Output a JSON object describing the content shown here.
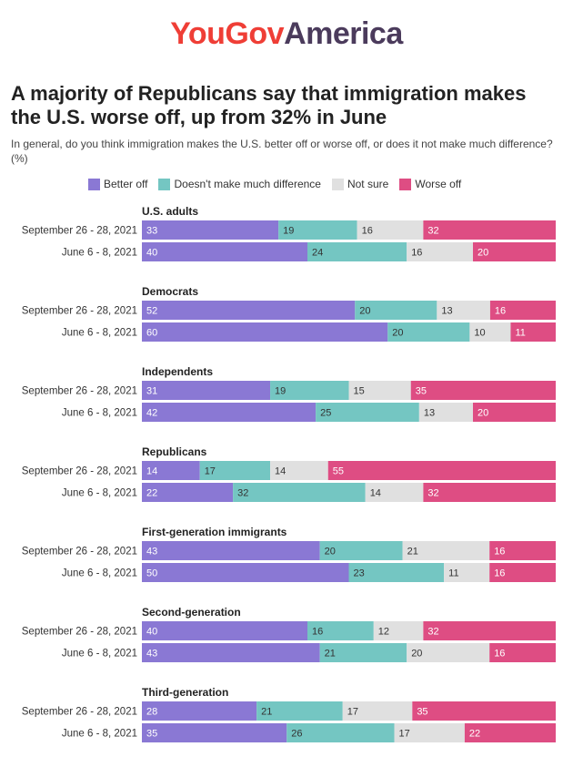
{
  "logo": {
    "part1": "YouGov",
    "part2": "America"
  },
  "title": "A majority of Republicans say that immigration makes the U.S. worse off, up from 32% in June",
  "subtitle": "In general, do you think immigration makes the U.S. better off or worse off, or does it not make much difference? (%)",
  "colors": {
    "better_off": "#8a78d4",
    "no_difference": "#74c6c2",
    "not_sure": "#e0e0e0",
    "worse_off": "#de4d83"
  },
  "chart_data": {
    "type": "bar",
    "orientation": "horizontal-stacked-100",
    "series_names": [
      "Better off",
      "Doesn't make much difference",
      "Not sure",
      "Worse off"
    ],
    "groups": [
      {
        "label": "U.S. adults",
        "rows": [
          {
            "period": "September 26 - 28, 2021",
            "values": [
              33,
              19,
              16,
              32
            ]
          },
          {
            "period": "June 6 - 8, 2021",
            "values": [
              40,
              24,
              16,
              20
            ]
          }
        ]
      },
      {
        "label": "Democrats",
        "rows": [
          {
            "period": "September 26 - 28, 2021",
            "values": [
              52,
              20,
              13,
              16
            ]
          },
          {
            "period": "June 6 - 8, 2021",
            "values": [
              60,
              20,
              10,
              11
            ]
          }
        ]
      },
      {
        "label": "Independents",
        "rows": [
          {
            "period": "September 26 - 28, 2021",
            "values": [
              31,
              19,
              15,
              35
            ]
          },
          {
            "period": "June 6 - 8, 2021",
            "values": [
              42,
              25,
              13,
              20
            ]
          }
        ]
      },
      {
        "label": "Republicans",
        "rows": [
          {
            "period": "September 26 - 28, 2021",
            "values": [
              14,
              17,
              14,
              55
            ]
          },
          {
            "period": "June 6 - 8, 2021",
            "values": [
              22,
              32,
              14,
              32
            ]
          }
        ]
      },
      {
        "label": "First-generation immigrants",
        "rows": [
          {
            "period": "September 26 - 28, 2021",
            "values": [
              43,
              20,
              21,
              16
            ]
          },
          {
            "period": "June 6 - 8, 2021",
            "values": [
              50,
              23,
              11,
              16
            ]
          }
        ]
      },
      {
        "label": "Second-generation",
        "rows": [
          {
            "period": "September 26 - 28, 2021",
            "values": [
              40,
              16,
              12,
              32
            ]
          },
          {
            "period": "June 6 - 8, 2021",
            "values": [
              43,
              21,
              20,
              16
            ]
          }
        ]
      },
      {
        "label": "Third-generation",
        "rows": [
          {
            "period": "September 26 - 28, 2021",
            "values": [
              28,
              21,
              17,
              35
            ]
          },
          {
            "period": "June 6 - 8, 2021",
            "values": [
              35,
              26,
              17,
              22
            ]
          }
        ]
      }
    ],
    "legend_position": "top"
  }
}
